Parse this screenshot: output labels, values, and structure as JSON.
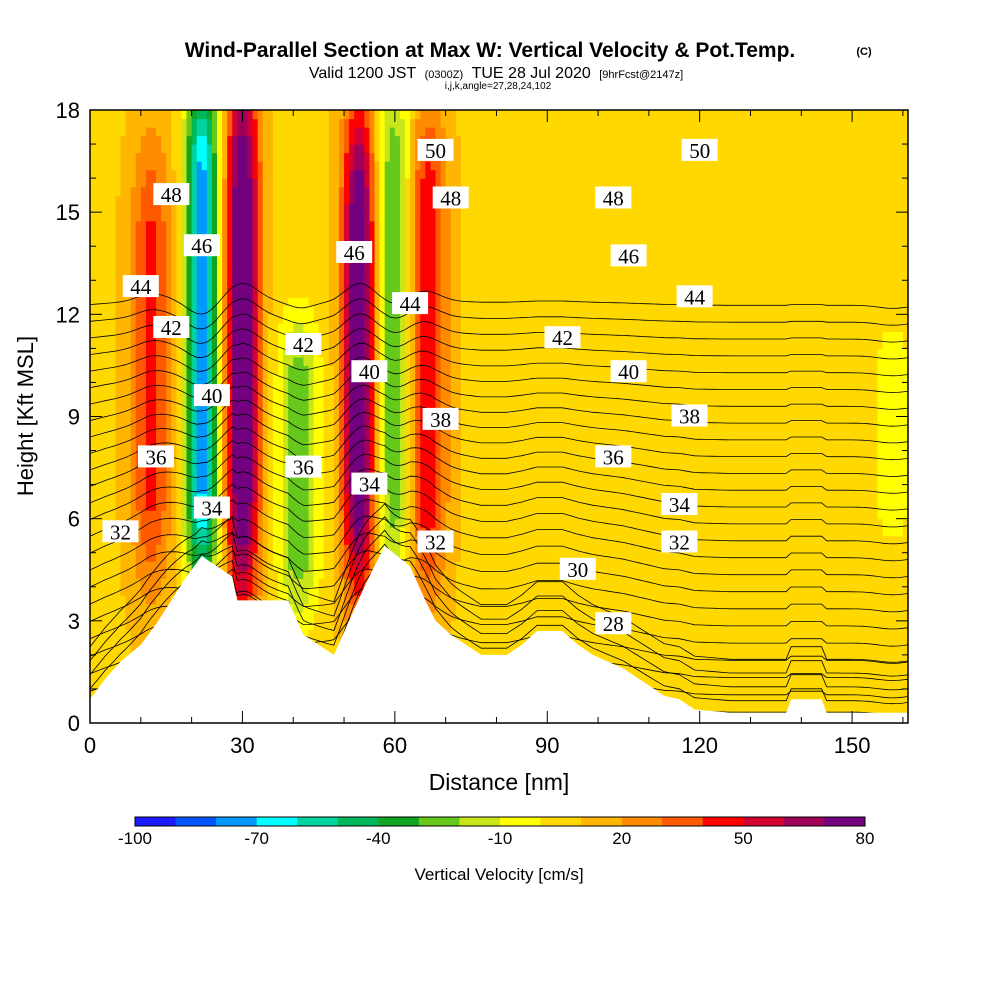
{
  "chart_data": {
    "type": "heatmap",
    "title": "Wind-Parallel Section at Max W: Vertical Velocity & Pot.Temp.",
    "title_mark": "(C)",
    "subtitle_prefix": "Valid 1200 JST",
    "subtitle_utc": "(0300Z)",
    "subtitle_date": "TUE 28 Jul 2020",
    "subtitle_fcst": "[9hrFcst@2147z]",
    "subtitle_indices": "i,j,k,angle=27,28,24,102",
    "xlabel": "Distance [nm]",
    "ylabel": "Height [Kft MSL]",
    "xlim": [
      0,
      161
    ],
    "ylim": [
      0,
      18
    ],
    "x_ticks": [
      0,
      30,
      60,
      90,
      120,
      150
    ],
    "y_ticks": [
      0,
      3,
      6,
      9,
      12,
      15,
      18
    ],
    "colorbar": {
      "label": "Vertical Velocity [cm/s]",
      "levels": [
        -100,
        -90,
        -80,
        -70,
        -60,
        -50,
        -40,
        -30,
        -20,
        -10,
        0,
        10,
        20,
        30,
        40,
        50,
        60,
        70,
        80
      ],
      "tick_labels": [
        "-100",
        "-70",
        "-40",
        "-10",
        "20",
        "50",
        "80"
      ],
      "colors": [
        "#1a1aff",
        "#0055ff",
        "#0099ff",
        "#00ffff",
        "#00d2a0",
        "#00b85a",
        "#11a522",
        "#66c81a",
        "#c8e619",
        "#ffff00",
        "#ffd800",
        "#ffb600",
        "#ff8c00",
        "#ff5a00",
        "#ff0000",
        "#d40032",
        "#a0005a",
        "#73007e"
      ]
    },
    "vertical_velocity_features": [
      {
        "x": 22,
        "y_range": [
          5,
          18
        ],
        "w_cms": -85,
        "kind": "downdraft"
      },
      {
        "x": 30,
        "y_range": [
          4.5,
          18
        ],
        "w_cms": 80,
        "kind": "updraft"
      },
      {
        "x": 12,
        "y_range": [
          5,
          16
        ],
        "w_cms": 35,
        "kind": "updraft"
      },
      {
        "x": 41,
        "y_range": [
          4,
          11
        ],
        "w_cms": -35,
        "kind": "downdraft"
      },
      {
        "x": 53,
        "y_range": [
          5,
          17
        ],
        "w_cms": 80,
        "kind": "updraft"
      },
      {
        "x": 60,
        "y_range": [
          5,
          18
        ],
        "w_cms": -40,
        "kind": "downdraft"
      },
      {
        "x": 66,
        "y_range": [
          5,
          17
        ],
        "w_cms": 45,
        "kind": "updraft"
      },
      {
        "x": 158,
        "y_range": [
          6,
          11
        ],
        "w_cms": -15,
        "kind": "downdraft"
      }
    ],
    "terrain_kft": [
      [
        0,
        0.7
      ],
      [
        3,
        1.3
      ],
      [
        6,
        1.8
      ],
      [
        10,
        2.3
      ],
      [
        13,
        2.9
      ],
      [
        16,
        3.6
      ],
      [
        19,
        4.3
      ],
      [
        22,
        4.9
      ],
      [
        28,
        4.3
      ],
      [
        29,
        3.6
      ],
      [
        39,
        3.6
      ],
      [
        42,
        2.6
      ],
      [
        45,
        2.3
      ],
      [
        48,
        2.0
      ],
      [
        51,
        3.0
      ],
      [
        54,
        4.0
      ],
      [
        56,
        4.6
      ],
      [
        58,
        5.2
      ],
      [
        63,
        4.6
      ],
      [
        66,
        3.6
      ],
      [
        68,
        3.0
      ],
      [
        71,
        2.6
      ],
      [
        74,
        2.3
      ],
      [
        77,
        2.0
      ],
      [
        82,
        2.0
      ],
      [
        85,
        2.3
      ],
      [
        88,
        2.7
      ],
      [
        93,
        2.7
      ],
      [
        96,
        2.3
      ],
      [
        99,
        2.0
      ],
      [
        102,
        1.8
      ],
      [
        105,
        1.6
      ],
      [
        108,
        1.3
      ],
      [
        111,
        1.0
      ],
      [
        113,
        0.8
      ],
      [
        116,
        0.7
      ],
      [
        119,
        0.4
      ],
      [
        126,
        0.3
      ],
      [
        137,
        0.3
      ],
      [
        138,
        0.7
      ],
      [
        144,
        0.7
      ],
      [
        145,
        0.3
      ],
      [
        158,
        0.3
      ],
      [
        161,
        0.3
      ]
    ],
    "theta_contour_labels": [
      {
        "text": "32",
        "x": 6,
        "y": 5.6
      },
      {
        "text": "36",
        "x": 13,
        "y": 7.8
      },
      {
        "text": "42",
        "x": 16,
        "y": 11.6
      },
      {
        "text": "44",
        "x": 10,
        "y": 12.8
      },
      {
        "text": "48",
        "x": 16,
        "y": 15.5
      },
      {
        "text": "46",
        "x": 22,
        "y": 14
      },
      {
        "text": "40",
        "x": 24,
        "y": 9.6
      },
      {
        "text": "34",
        "x": 24,
        "y": 6.3
      },
      {
        "text": "42",
        "x": 42,
        "y": 11.1
      },
      {
        "text": "36",
        "x": 42,
        "y": 7.5
      },
      {
        "text": "46",
        "x": 52,
        "y": 13.8
      },
      {
        "text": "40",
        "x": 55,
        "y": 10.3
      },
      {
        "text": "34",
        "x": 55,
        "y": 7.0
      },
      {
        "text": "44",
        "x": 63,
        "y": 12.3
      },
      {
        "text": "38",
        "x": 69,
        "y": 8.9
      },
      {
        "text": "32",
        "x": 68,
        "y": 5.3
      },
      {
        "text": "50",
        "x": 68,
        "y": 16.8
      },
      {
        "text": "48",
        "x": 71,
        "y": 15.4
      },
      {
        "text": "42",
        "x": 93,
        "y": 11.3
      },
      {
        "text": "48",
        "x": 103,
        "y": 15.4
      },
      {
        "text": "46",
        "x": 106,
        "y": 13.7
      },
      {
        "text": "40",
        "x": 106,
        "y": 10.3
      },
      {
        "text": "36",
        "x": 103,
        "y": 7.8
      },
      {
        "text": "30",
        "x": 96,
        "y": 4.5
      },
      {
        "text": "28",
        "x": 103,
        "y": 2.9
      },
      {
        "text": "34",
        "x": 116,
        "y": 6.4
      },
      {
        "text": "32",
        "x": 116,
        "y": 5.3
      },
      {
        "text": "38",
        "x": 118,
        "y": 9.0
      },
      {
        "text": "44",
        "x": 119,
        "y": 12.5
      },
      {
        "text": "50",
        "x": 120,
        "y": 16.8
      }
    ]
  }
}
